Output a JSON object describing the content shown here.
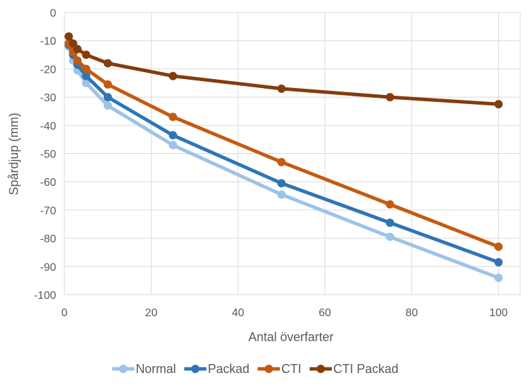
{
  "chart_data": {
    "type": "line",
    "title": "",
    "xlabel": "Antal överfarter",
    "ylabel": "Spårdjup (mm)",
    "xlim": [
      0,
      105
    ],
    "ylim": [
      -100,
      0
    ],
    "xticks": [
      0,
      20,
      40,
      60,
      80,
      100
    ],
    "yticks": [
      0,
      -10,
      -20,
      -30,
      -40,
      -50,
      -60,
      -70,
      -80,
      -90,
      -100
    ],
    "grid": true,
    "legend_position": "bottom",
    "series": [
      {
        "name": "Normal",
        "color": "#9DC3E6",
        "x": [
          1,
          2,
          3,
          5,
          10,
          25,
          50,
          75,
          100
        ],
        "y": [
          -12,
          -17,
          -20.5,
          -25,
          -33,
          -47,
          -64.5,
          -79.5,
          -94
        ]
      },
      {
        "name": "Packad",
        "color": "#2E75B6",
        "x": [
          1,
          2,
          3,
          5,
          10,
          25,
          50,
          75,
          100
        ],
        "y": [
          -11.5,
          -15,
          -18.5,
          -22.5,
          -30,
          -43.5,
          -60.5,
          -74.5,
          -88.5
        ]
      },
      {
        "name": "CTI",
        "color": "#C55A11",
        "x": [
          1,
          2,
          3,
          5,
          10,
          25,
          50,
          75,
          100
        ],
        "y": [
          -11,
          -14,
          -17,
          -20,
          -25.5,
          -37,
          -53,
          -68,
          -83
        ]
      },
      {
        "name": "CTI Packad",
        "color": "#843C0C",
        "x": [
          1,
          2,
          3,
          5,
          10,
          25,
          50,
          75,
          100
        ],
        "y": [
          -8.5,
          -11,
          -13,
          -15,
          -18,
          -22.5,
          -27,
          -30,
          -32.5
        ]
      }
    ]
  }
}
